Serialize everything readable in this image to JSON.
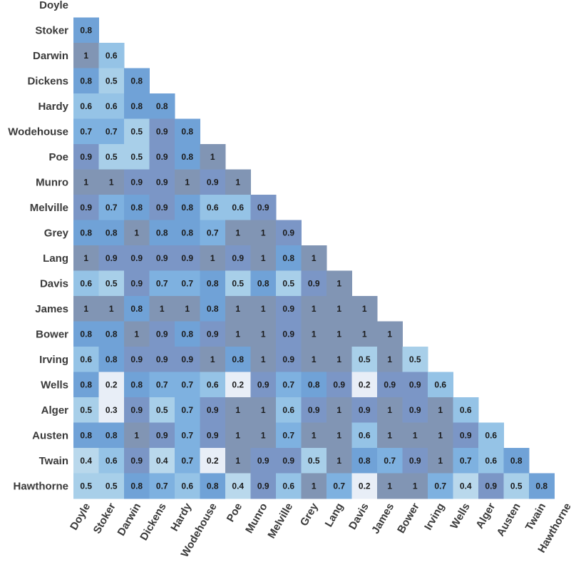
{
  "chart_data": {
    "type": "heatmap",
    "title": "",
    "xlabel": "",
    "ylabel": "",
    "grid": false,
    "legend": "none",
    "color_scale": [
      {
        "value": 0.2,
        "color": "#e8eef7"
      },
      {
        "value": 0.4,
        "color": "#b9d8ec"
      },
      {
        "value": 0.5,
        "color": "#a8cfe9"
      },
      {
        "value": 0.6,
        "color": "#95c3e6"
      },
      {
        "value": 0.7,
        "color": "#7eb1e0"
      },
      {
        "value": 0.8,
        "color": "#70a2d7"
      },
      {
        "value": 0.9,
        "color": "#7b96c6"
      },
      {
        "value": 1.0,
        "color": "#8195b4"
      }
    ],
    "rows": [
      "Doyle",
      "Stoker",
      "Darwin",
      "Dickens",
      "Hardy",
      "Wodehouse",
      "Poe",
      "Munro",
      "Melville",
      "Grey",
      "Lang",
      "Davis",
      "James",
      "Bower",
      "Irving",
      "Wells",
      "Alger",
      "Austen",
      "Twain",
      "Hawthorne"
    ],
    "columns": [
      "Doyle",
      "Stoker",
      "Darwin",
      "Dickens",
      "Hardy",
      "Wodehouse",
      "Poe",
      "Munro",
      "Melville",
      "Grey",
      "Lang",
      "Davis",
      "James",
      "Bower",
      "Irving",
      "Wells",
      "Alger",
      "Austen",
      "Twain",
      "Hawthorne"
    ],
    "values": [
      [],
      [
        0.8
      ],
      [
        1,
        0.6
      ],
      [
        0.8,
        0.5,
        0.8
      ],
      [
        0.6,
        0.6,
        0.8,
        0.8
      ],
      [
        0.7,
        0.7,
        0.5,
        0.9,
        0.8
      ],
      [
        0.9,
        0.5,
        0.5,
        0.9,
        0.8,
        1
      ],
      [
        1,
        1,
        0.9,
        0.9,
        1,
        0.9,
        1
      ],
      [
        0.9,
        0.7,
        0.8,
        0.9,
        0.8,
        0.6,
        0.6,
        0.9
      ],
      [
        0.8,
        0.8,
        1,
        0.8,
        0.8,
        0.7,
        1,
        1,
        0.9
      ],
      [
        1,
        0.9,
        0.9,
        0.9,
        0.9,
        1,
        0.9,
        1,
        0.8,
        1
      ],
      [
        0.6,
        0.5,
        0.9,
        0.7,
        0.7,
        0.8,
        0.5,
        0.8,
        0.5,
        0.9,
        1
      ],
      [
        1,
        1,
        0.8,
        1,
        1,
        0.8,
        1,
        1,
        0.9,
        1,
        1,
        1
      ],
      [
        0.8,
        0.8,
        1,
        0.9,
        0.8,
        0.9,
        1,
        1,
        0.9,
        1,
        1,
        1,
        1
      ],
      [
        0.6,
        0.8,
        0.9,
        0.9,
        0.9,
        1,
        0.8,
        1,
        0.9,
        1,
        1,
        0.5,
        1,
        0.5
      ],
      [
        0.8,
        0.2,
        0.8,
        0.7,
        0.7,
        0.6,
        0.2,
        0.9,
        0.7,
        0.8,
        0.9,
        0.2,
        0.9,
        0.9,
        0.6
      ],
      [
        0.5,
        0.3,
        0.9,
        0.5,
        0.7,
        0.9,
        1,
        1,
        0.6,
        0.9,
        1,
        0.9,
        1,
        0.9,
        1,
        0.6
      ],
      [
        0.8,
        0.8,
        1,
        0.9,
        0.7,
        0.9,
        1,
        1,
        0.7,
        1,
        1,
        0.6,
        1,
        1,
        1,
        0.9,
        0.6
      ],
      [
        0.4,
        0.6,
        0.9,
        0.4,
        0.7,
        0.2,
        1,
        0.9,
        0.9,
        0.5,
        1,
        0.8,
        0.7,
        0.9,
        1,
        0.7,
        0.6,
        0.8
      ],
      [
        0.5,
        0.5,
        0.8,
        0.7,
        0.6,
        0.8,
        0.4,
        0.9,
        0.6,
        1,
        0.7,
        0.2,
        1,
        1,
        0.7,
        0.4,
        0.9,
        0.5,
        0.8
      ]
    ]
  }
}
